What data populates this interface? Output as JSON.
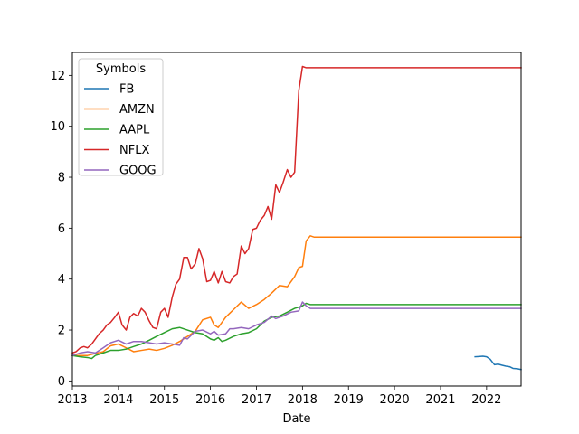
{
  "chart_data": {
    "type": "line",
    "title": "",
    "xlabel": "Date",
    "ylabel": "",
    "xlim": [
      2013.0,
      2022.75
    ],
    "ylim": [
      -0.2,
      12.9
    ],
    "grid": false,
    "legend": {
      "title": "Symbols",
      "placement": "upper-left"
    },
    "x_ticks": [
      2013,
      2014,
      2015,
      2016,
      2017,
      2018,
      2019,
      2020,
      2021,
      2022
    ],
    "x_tick_labels": [
      "2013",
      "2014",
      "2015",
      "2016",
      "2017",
      "2018",
      "2019",
      "2020",
      "2021",
      "2022"
    ],
    "y_ticks": [
      0,
      2,
      4,
      6,
      8,
      10,
      12
    ],
    "y_tick_labels": [
      "0",
      "2",
      "4",
      "6",
      "8",
      "10",
      "12"
    ],
    "series": [
      {
        "name": "FB",
        "color": "#1f77b4",
        "points": [
          [
            2021.75,
            0.95
          ],
          [
            2021.83,
            0.96
          ],
          [
            2021.92,
            0.97
          ],
          [
            2022.0,
            0.95
          ],
          [
            2022.08,
            0.85
          ],
          [
            2022.17,
            0.64
          ],
          [
            2022.25,
            0.66
          ],
          [
            2022.33,
            0.62
          ],
          [
            2022.42,
            0.58
          ],
          [
            2022.5,
            0.56
          ],
          [
            2022.58,
            0.49
          ],
          [
            2022.67,
            0.48
          ],
          [
            2022.75,
            0.45
          ]
        ]
      },
      {
        "name": "AMZN",
        "color": "#ff7f0e",
        "points": [
          [
            2013.0,
            1.0
          ],
          [
            2013.17,
            1.0
          ],
          [
            2013.33,
            1.0
          ],
          [
            2013.5,
            1.08
          ],
          [
            2013.67,
            1.15
          ],
          [
            2013.83,
            1.38
          ],
          [
            2014.0,
            1.45
          ],
          [
            2014.17,
            1.3
          ],
          [
            2014.33,
            1.15
          ],
          [
            2014.5,
            1.2
          ],
          [
            2014.67,
            1.25
          ],
          [
            2014.83,
            1.2
          ],
          [
            2015.0,
            1.28
          ],
          [
            2015.17,
            1.4
          ],
          [
            2015.33,
            1.55
          ],
          [
            2015.5,
            1.75
          ],
          [
            2015.67,
            1.95
          ],
          [
            2015.83,
            2.4
          ],
          [
            2016.0,
            2.5
          ],
          [
            2016.08,
            2.2
          ],
          [
            2016.17,
            2.1
          ],
          [
            2016.33,
            2.5
          ],
          [
            2016.5,
            2.8
          ],
          [
            2016.67,
            3.1
          ],
          [
            2016.83,
            2.85
          ],
          [
            2017.0,
            3.0
          ],
          [
            2017.17,
            3.2
          ],
          [
            2017.33,
            3.45
          ],
          [
            2017.5,
            3.75
          ],
          [
            2017.67,
            3.7
          ],
          [
            2017.83,
            4.1
          ],
          [
            2017.92,
            4.45
          ],
          [
            2018.0,
            4.5
          ],
          [
            2018.08,
            5.5
          ],
          [
            2018.17,
            5.7
          ],
          [
            2018.25,
            5.65
          ],
          [
            2022.75,
            5.65
          ]
        ]
      },
      {
        "name": "AAPL",
        "color": "#2ca02c",
        "points": [
          [
            2013.0,
            1.0
          ],
          [
            2013.17,
            0.95
          ],
          [
            2013.33,
            0.92
          ],
          [
            2013.42,
            0.88
          ],
          [
            2013.5,
            1.0
          ],
          [
            2013.67,
            1.1
          ],
          [
            2013.83,
            1.2
          ],
          [
            2014.0,
            1.2
          ],
          [
            2014.17,
            1.25
          ],
          [
            2014.33,
            1.35
          ],
          [
            2014.5,
            1.45
          ],
          [
            2014.67,
            1.6
          ],
          [
            2014.83,
            1.75
          ],
          [
            2015.0,
            1.9
          ],
          [
            2015.17,
            2.05
          ],
          [
            2015.33,
            2.1
          ],
          [
            2015.5,
            2.0
          ],
          [
            2015.67,
            1.9
          ],
          [
            2015.83,
            1.85
          ],
          [
            2016.0,
            1.65
          ],
          [
            2016.08,
            1.6
          ],
          [
            2016.17,
            1.7
          ],
          [
            2016.25,
            1.55
          ],
          [
            2016.33,
            1.6
          ],
          [
            2016.5,
            1.75
          ],
          [
            2016.67,
            1.85
          ],
          [
            2016.83,
            1.9
          ],
          [
            2017.0,
            2.05
          ],
          [
            2017.17,
            2.35
          ],
          [
            2017.33,
            2.5
          ],
          [
            2017.5,
            2.55
          ],
          [
            2017.67,
            2.7
          ],
          [
            2017.83,
            2.85
          ],
          [
            2017.92,
            2.9
          ],
          [
            2018.0,
            2.95
          ],
          [
            2018.08,
            3.05
          ],
          [
            2018.17,
            3.0
          ],
          [
            2022.75,
            3.0
          ]
        ]
      },
      {
        "name": "NFLX",
        "color": "#d62728",
        "points": [
          [
            2013.0,
            1.1
          ],
          [
            2013.08,
            1.15
          ],
          [
            2013.17,
            1.3
          ],
          [
            2013.25,
            1.35
          ],
          [
            2013.33,
            1.3
          ],
          [
            2013.42,
            1.45
          ],
          [
            2013.5,
            1.65
          ],
          [
            2013.58,
            1.85
          ],
          [
            2013.67,
            2.0
          ],
          [
            2013.75,
            2.2
          ],
          [
            2013.83,
            2.3
          ],
          [
            2013.92,
            2.5
          ],
          [
            2014.0,
            2.7
          ],
          [
            2014.08,
            2.2
          ],
          [
            2014.17,
            2.0
          ],
          [
            2014.25,
            2.5
          ],
          [
            2014.33,
            2.65
          ],
          [
            2014.42,
            2.55
          ],
          [
            2014.5,
            2.85
          ],
          [
            2014.58,
            2.7
          ],
          [
            2014.67,
            2.35
          ],
          [
            2014.75,
            2.1
          ],
          [
            2014.83,
            2.05
          ],
          [
            2014.92,
            2.7
          ],
          [
            2015.0,
            2.85
          ],
          [
            2015.08,
            2.5
          ],
          [
            2015.17,
            3.3
          ],
          [
            2015.25,
            3.8
          ],
          [
            2015.33,
            4.0
          ],
          [
            2015.42,
            4.85
          ],
          [
            2015.5,
            4.85
          ],
          [
            2015.58,
            4.4
          ],
          [
            2015.67,
            4.6
          ],
          [
            2015.75,
            5.2
          ],
          [
            2015.83,
            4.8
          ],
          [
            2015.92,
            3.9
          ],
          [
            2016.0,
            3.95
          ],
          [
            2016.08,
            4.3
          ],
          [
            2016.17,
            3.85
          ],
          [
            2016.25,
            4.3
          ],
          [
            2016.33,
            3.9
          ],
          [
            2016.42,
            3.85
          ],
          [
            2016.5,
            4.1
          ],
          [
            2016.58,
            4.2
          ],
          [
            2016.67,
            5.3
          ],
          [
            2016.75,
            5.0
          ],
          [
            2016.83,
            5.2
          ],
          [
            2016.92,
            5.95
          ],
          [
            2017.0,
            6.0
          ],
          [
            2017.08,
            6.3
          ],
          [
            2017.17,
            6.5
          ],
          [
            2017.25,
            6.85
          ],
          [
            2017.33,
            6.35
          ],
          [
            2017.42,
            7.7
          ],
          [
            2017.5,
            7.4
          ],
          [
            2017.58,
            7.8
          ],
          [
            2017.67,
            8.3
          ],
          [
            2017.75,
            8.0
          ],
          [
            2017.83,
            8.2
          ],
          [
            2017.92,
            11.4
          ],
          [
            2018.0,
            12.35
          ],
          [
            2018.08,
            12.3
          ],
          [
            2018.17,
            12.3
          ],
          [
            2022.75,
            12.3
          ]
        ]
      },
      {
        "name": "GOOG",
        "color": "#9467bd",
        "points": [
          [
            2013.0,
            1.0
          ],
          [
            2013.17,
            1.1
          ],
          [
            2013.33,
            1.15
          ],
          [
            2013.5,
            1.1
          ],
          [
            2013.67,
            1.3
          ],
          [
            2013.83,
            1.5
          ],
          [
            2014.0,
            1.6
          ],
          [
            2014.17,
            1.45
          ],
          [
            2014.33,
            1.55
          ],
          [
            2014.5,
            1.55
          ],
          [
            2014.67,
            1.5
          ],
          [
            2014.83,
            1.45
          ],
          [
            2015.0,
            1.5
          ],
          [
            2015.17,
            1.45
          ],
          [
            2015.33,
            1.4
          ],
          [
            2015.42,
            1.7
          ],
          [
            2015.5,
            1.65
          ],
          [
            2015.67,
            1.95
          ],
          [
            2015.83,
            2.0
          ],
          [
            2016.0,
            1.85
          ],
          [
            2016.08,
            1.95
          ],
          [
            2016.17,
            1.8
          ],
          [
            2016.33,
            1.85
          ],
          [
            2016.42,
            2.05
          ],
          [
            2016.5,
            2.05
          ],
          [
            2016.67,
            2.1
          ],
          [
            2016.83,
            2.05
          ],
          [
            2017.0,
            2.2
          ],
          [
            2017.17,
            2.3
          ],
          [
            2017.33,
            2.55
          ],
          [
            2017.42,
            2.45
          ],
          [
            2017.58,
            2.55
          ],
          [
            2017.75,
            2.7
          ],
          [
            2017.92,
            2.75
          ],
          [
            2018.0,
            3.1
          ],
          [
            2018.08,
            2.95
          ],
          [
            2018.17,
            2.85
          ],
          [
            2022.75,
            2.85
          ]
        ]
      }
    ]
  }
}
